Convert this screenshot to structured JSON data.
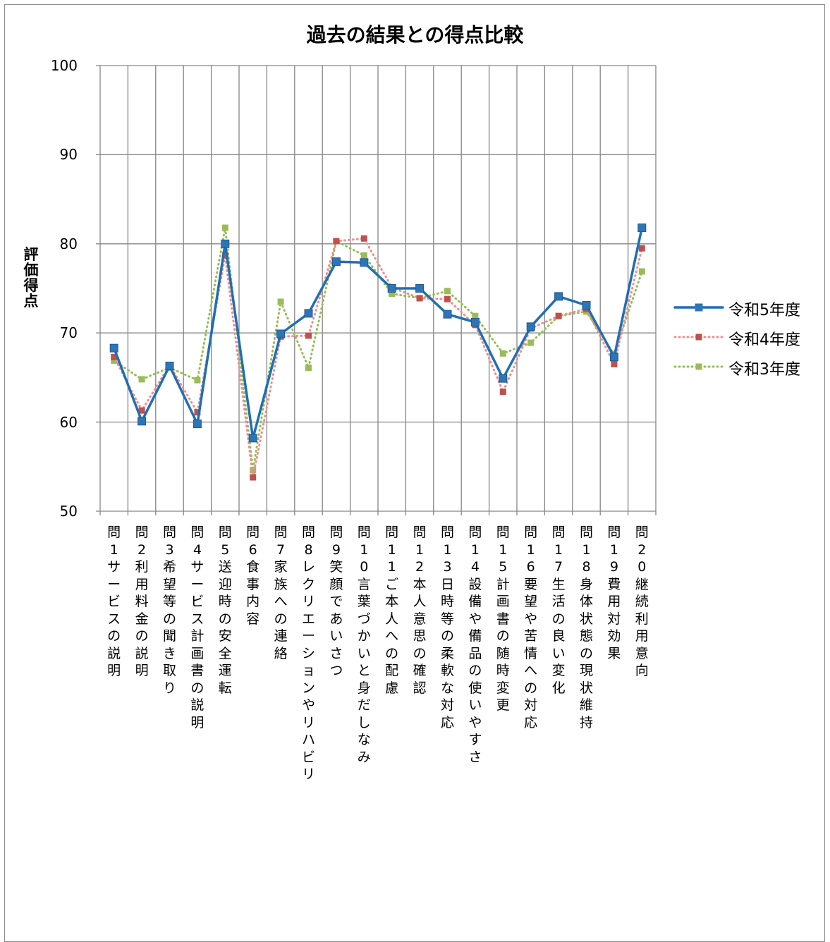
{
  "chart_data": {
    "type": "line",
    "title": "過去の結果との得点比較",
    "ylabel": "評価得点",
    "xlabel": "",
    "ylim": [
      50,
      100
    ],
    "yticks": [
      50,
      60,
      70,
      80,
      90,
      100
    ],
    "grid": true,
    "legend_position": "right",
    "categories": [
      "問1サービスの説明",
      "問2利用料金の説明",
      "問3希望等の聞き取り",
      "問4サービス計画書の説明",
      "問5送迎時の安全運転",
      "問6食事内容",
      "問7家族への連絡",
      "問8レクリエーションやリハビリ",
      "問9笑顔であいさつ",
      "問10言葉づかいと身だしなみ",
      "問11ご本人への配慮",
      "問12本人意思の確認",
      "問13日時等の柔軟な対応",
      "問14設備や備品の使いやすさ",
      "問15計画書の随時変更",
      "問16要望や苦情への対応",
      "問17生活の良い変化",
      "問18身体状態の現状維持",
      "問19費用対効果",
      "問20継続利用意向"
    ],
    "series": [
      {
        "name": "令和5年度",
        "color": "#1f6fb5",
        "style": "solid",
        "marker_color": "#2e75b6",
        "values": [
          68.3,
          60.1,
          66.3,
          59.8,
          80.0,
          58.2,
          69.9,
          72.2,
          78.0,
          77.9,
          75.0,
          75.0,
          72.1,
          71.2,
          64.9,
          70.7,
          74.1,
          73.1,
          67.3,
          81.8
        ]
      },
      {
        "name": "令和4年度",
        "color": "#ef8d8d",
        "style": "dotted",
        "marker_color": "#c0504d",
        "values": [
          67.3,
          61.3,
          66.4,
          61.1,
          78.7,
          53.8,
          69.6,
          69.7,
          80.3,
          80.6,
          75.1,
          73.9,
          73.8,
          70.9,
          63.4,
          70.5,
          71.9,
          72.7,
          66.5,
          79.5
        ]
      },
      {
        "name": "令和3年度",
        "color": "#92c050",
        "style": "dotted",
        "marker_color": "#9bbb59",
        "values": [
          66.9,
          64.8,
          66.1,
          64.7,
          81.8,
          54.6,
          73.5,
          66.1,
          80.3,
          78.7,
          74.4,
          73.9,
          74.7,
          71.9,
          67.7,
          68.9,
          71.9,
          72.4,
          67.6,
          76.9
        ]
      }
    ]
  }
}
